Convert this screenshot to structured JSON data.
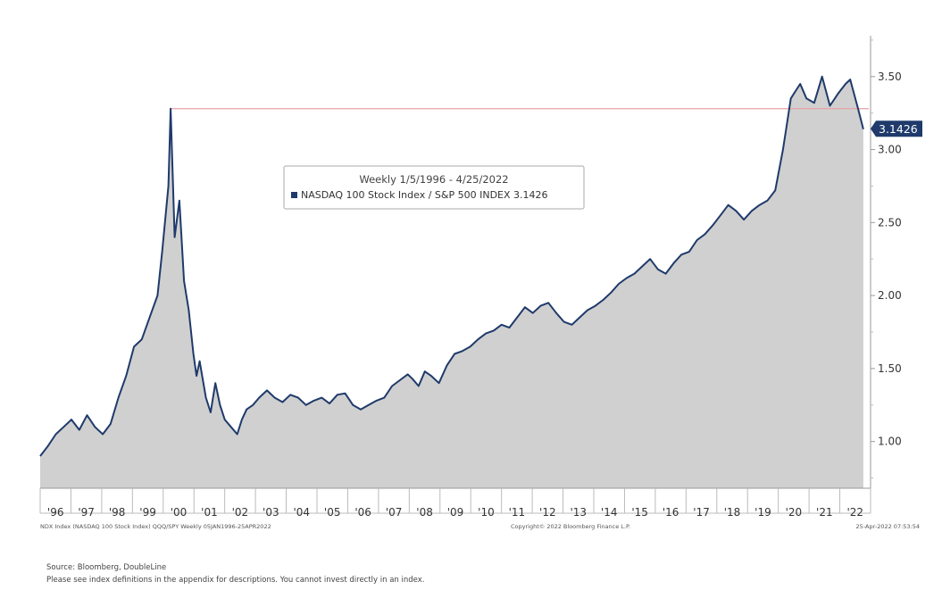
{
  "chart_data": {
    "type": "area",
    "title": "Weekly 1/5/1996 - 4/25/2022",
    "series": [
      {
        "name": "NASDAQ 100 Stock Index / S&P 500 INDEX",
        "legend_label": "NASDAQ 100 Stock Index / S&P 500 INDEX 3.1426",
        "last_value": 3.1426,
        "last_value_label": "3.1426",
        "x": [
          1996.0,
          1996.25,
          1996.5,
          1996.75,
          1997.0,
          1997.25,
          1997.5,
          1997.75,
          1998.0,
          1998.25,
          1998.5,
          1998.75,
          1999.0,
          1999.25,
          1999.5,
          1999.75,
          1999.9,
          2000.1,
          2000.17,
          2000.3,
          2000.45,
          2000.6,
          2000.75,
          2000.9,
          2001.0,
          2001.1,
          2001.3,
          2001.45,
          2001.6,
          2001.75,
          2001.9,
          2002.1,
          2002.3,
          2002.45,
          2002.6,
          2002.8,
          2003.0,
          2003.25,
          2003.5,
          2003.75,
          2004.0,
          2004.25,
          2004.5,
          2004.75,
          2005.0,
          2005.25,
          2005.5,
          2005.75,
          2006.0,
          2006.25,
          2006.5,
          2006.75,
          2007.0,
          2007.25,
          2007.5,
          2007.75,
          2007.9,
          2008.1,
          2008.3,
          2008.5,
          2008.75,
          2009.0,
          2009.25,
          2009.5,
          2009.75,
          2010.0,
          2010.25,
          2010.5,
          2010.75,
          2011.0,
          2011.25,
          2011.5,
          2011.75,
          2012.0,
          2012.25,
          2012.5,
          2012.75,
          2013.0,
          2013.25,
          2013.5,
          2013.75,
          2014.0,
          2014.25,
          2014.5,
          2014.75,
          2015.0,
          2015.25,
          2015.5,
          2015.75,
          2016.0,
          2016.25,
          2016.5,
          2016.75,
          2017.0,
          2017.25,
          2017.5,
          2017.75,
          2018.0,
          2018.25,
          2018.5,
          2018.75,
          2019.0,
          2019.25,
          2019.5,
          2019.75,
          2020.0,
          2020.15,
          2020.3,
          2020.5,
          2020.75,
          2021.0,
          2021.25,
          2021.5,
          2021.75,
          2021.9,
          2022.0,
          2022.15,
          2022.32
        ],
        "y": [
          0.9,
          0.97,
          1.05,
          1.1,
          1.15,
          1.08,
          1.18,
          1.1,
          1.05,
          1.12,
          1.3,
          1.45,
          1.65,
          1.7,
          1.85,
          2.0,
          2.3,
          2.75,
          3.28,
          2.4,
          2.65,
          2.1,
          1.9,
          1.6,
          1.45,
          1.55,
          1.3,
          1.2,
          1.4,
          1.25,
          1.15,
          1.1,
          1.05,
          1.15,
          1.22,
          1.25,
          1.3,
          1.35,
          1.3,
          1.27,
          1.32,
          1.3,
          1.25,
          1.28,
          1.3,
          1.26,
          1.32,
          1.33,
          1.25,
          1.22,
          1.25,
          1.28,
          1.3,
          1.38,
          1.42,
          1.46,
          1.43,
          1.38,
          1.48,
          1.45,
          1.4,
          1.52,
          1.6,
          1.62,
          1.65,
          1.7,
          1.74,
          1.76,
          1.8,
          1.78,
          1.85,
          1.92,
          1.88,
          1.93,
          1.95,
          1.88,
          1.82,
          1.8,
          1.85,
          1.9,
          1.93,
          1.97,
          2.02,
          2.08,
          2.12,
          2.15,
          2.2,
          2.25,
          2.18,
          2.15,
          2.22,
          2.28,
          2.3,
          2.38,
          2.42,
          2.48,
          2.55,
          2.62,
          2.58,
          2.52,
          2.58,
          2.62,
          2.65,
          2.72,
          3.0,
          3.35,
          3.4,
          3.45,
          3.35,
          3.32,
          3.5,
          3.3,
          3.38,
          3.45,
          3.48,
          3.4,
          3.28,
          3.14
        ]
      }
    ],
    "reference_line": {
      "value": 3.28
    },
    "xlabel": "",
    "ylabel": "",
    "xlim": [
      1996.0,
      2022.55
    ],
    "ylim": [
      0.68,
      3.78
    ],
    "y_ticks": [
      1.0,
      1.5,
      2.0,
      2.5,
      3.0,
      3.5
    ],
    "y_tick_labels": [
      "1.00",
      "1.50",
      "2.00",
      "2.50",
      "3.00",
      "3.50"
    ],
    "x_tick_labels": [
      "'96",
      "'97",
      "'98",
      "'99",
      "'00",
      "'01",
      "'02",
      "'03",
      "'04",
      "'05",
      "'06",
      "'07",
      "'08",
      "'09",
      "'10",
      "'11",
      "'12",
      "'13",
      "'14",
      "'15",
      "'16",
      "'17",
      "'18",
      "'19",
      "'20",
      "'21",
      "'22"
    ],
    "grid": false,
    "legend_position": "upper-center",
    "colors": {
      "line": "#1f3a6b",
      "fill": "#d0d0d0",
      "reference": "#e8a0a8",
      "label_bg": "#1f3a6b"
    }
  },
  "footer": {
    "left_meta": "NDX Index (NASDAQ 100 Stock Index) QQQ/SPY   Weekly 05JAN1996-25APR2022",
    "center_meta": "Copyright© 2022 Bloomberg Finance L.P.",
    "right_meta": "25-Apr-2022 07:53:54",
    "source": "Source: Bloomberg, DoubleLine",
    "disclaimer": "Please see index definitions in the appendix for descriptions. You cannot invest directly in an index."
  }
}
